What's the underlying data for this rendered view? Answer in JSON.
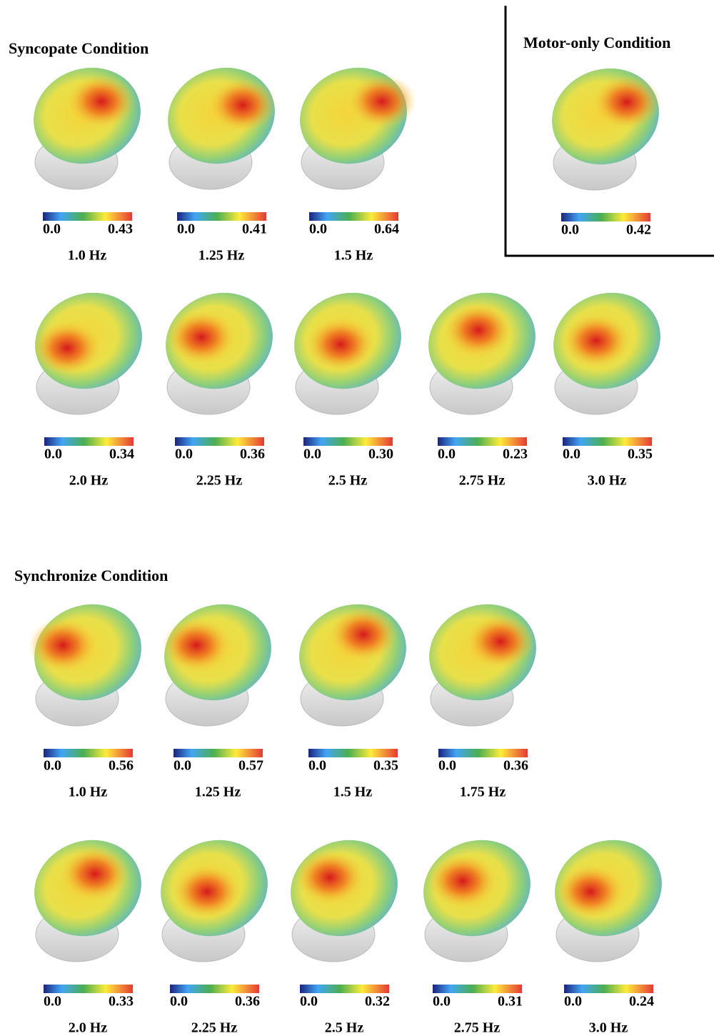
{
  "syncopate": {
    "title": "Syncopate Condition",
    "rows": [
      [
        {
          "min": "0.0",
          "max": "0.43",
          "freq": "1.0 Hz"
        },
        {
          "min": "0.0",
          "max": "0.41",
          "freq": "1.25 Hz"
        },
        {
          "min": "0.0",
          "max": "0.64",
          "freq": "1.5 Hz"
        }
      ],
      [
        {
          "min": "0.0",
          "max": "0.34",
          "freq": "2.0 Hz"
        },
        {
          "min": "0.0",
          "max": "0.36",
          "freq": "2.25 Hz"
        },
        {
          "min": "0.0",
          "max": "0.30",
          "freq": "2.5 Hz"
        },
        {
          "min": "0.0",
          "max": "0.23",
          "freq": "2.75 Hz"
        },
        {
          "min": "0.0",
          "max": "0.35",
          "freq": "3.0 Hz"
        }
      ]
    ]
  },
  "motor_only": {
    "title": "Motor-only Condition",
    "rows": [
      [
        {
          "min": "0.0",
          "max": "0.42"
        }
      ]
    ]
  },
  "synchronize": {
    "title": "Synchronize Condition",
    "rows": [
      [
        {
          "min": "0.0",
          "max": "0.56",
          "freq": "1.0 Hz"
        },
        {
          "min": "0.0",
          "max": "0.57",
          "freq": "1.25 Hz"
        },
        {
          "min": "0.0",
          "max": "0.35",
          "freq": "1.5 Hz"
        },
        {
          "min": "0.0",
          "max": "0.36",
          "freq": "1.75 Hz"
        }
      ],
      [
        {
          "min": "0.0",
          "max": "0.33",
          "freq": "2.0 Hz"
        },
        {
          "min": "0.0",
          "max": "0.36",
          "freq": "2.25 Hz"
        },
        {
          "min": "0.0",
          "max": "0.32",
          "freq": "2.5 Hz"
        },
        {
          "min": "0.0",
          "max": "0.31",
          "freq": "2.75 Hz"
        },
        {
          "min": "0.0",
          "max": "0.24",
          "freq": "3.0 Hz"
        }
      ]
    ]
  }
}
